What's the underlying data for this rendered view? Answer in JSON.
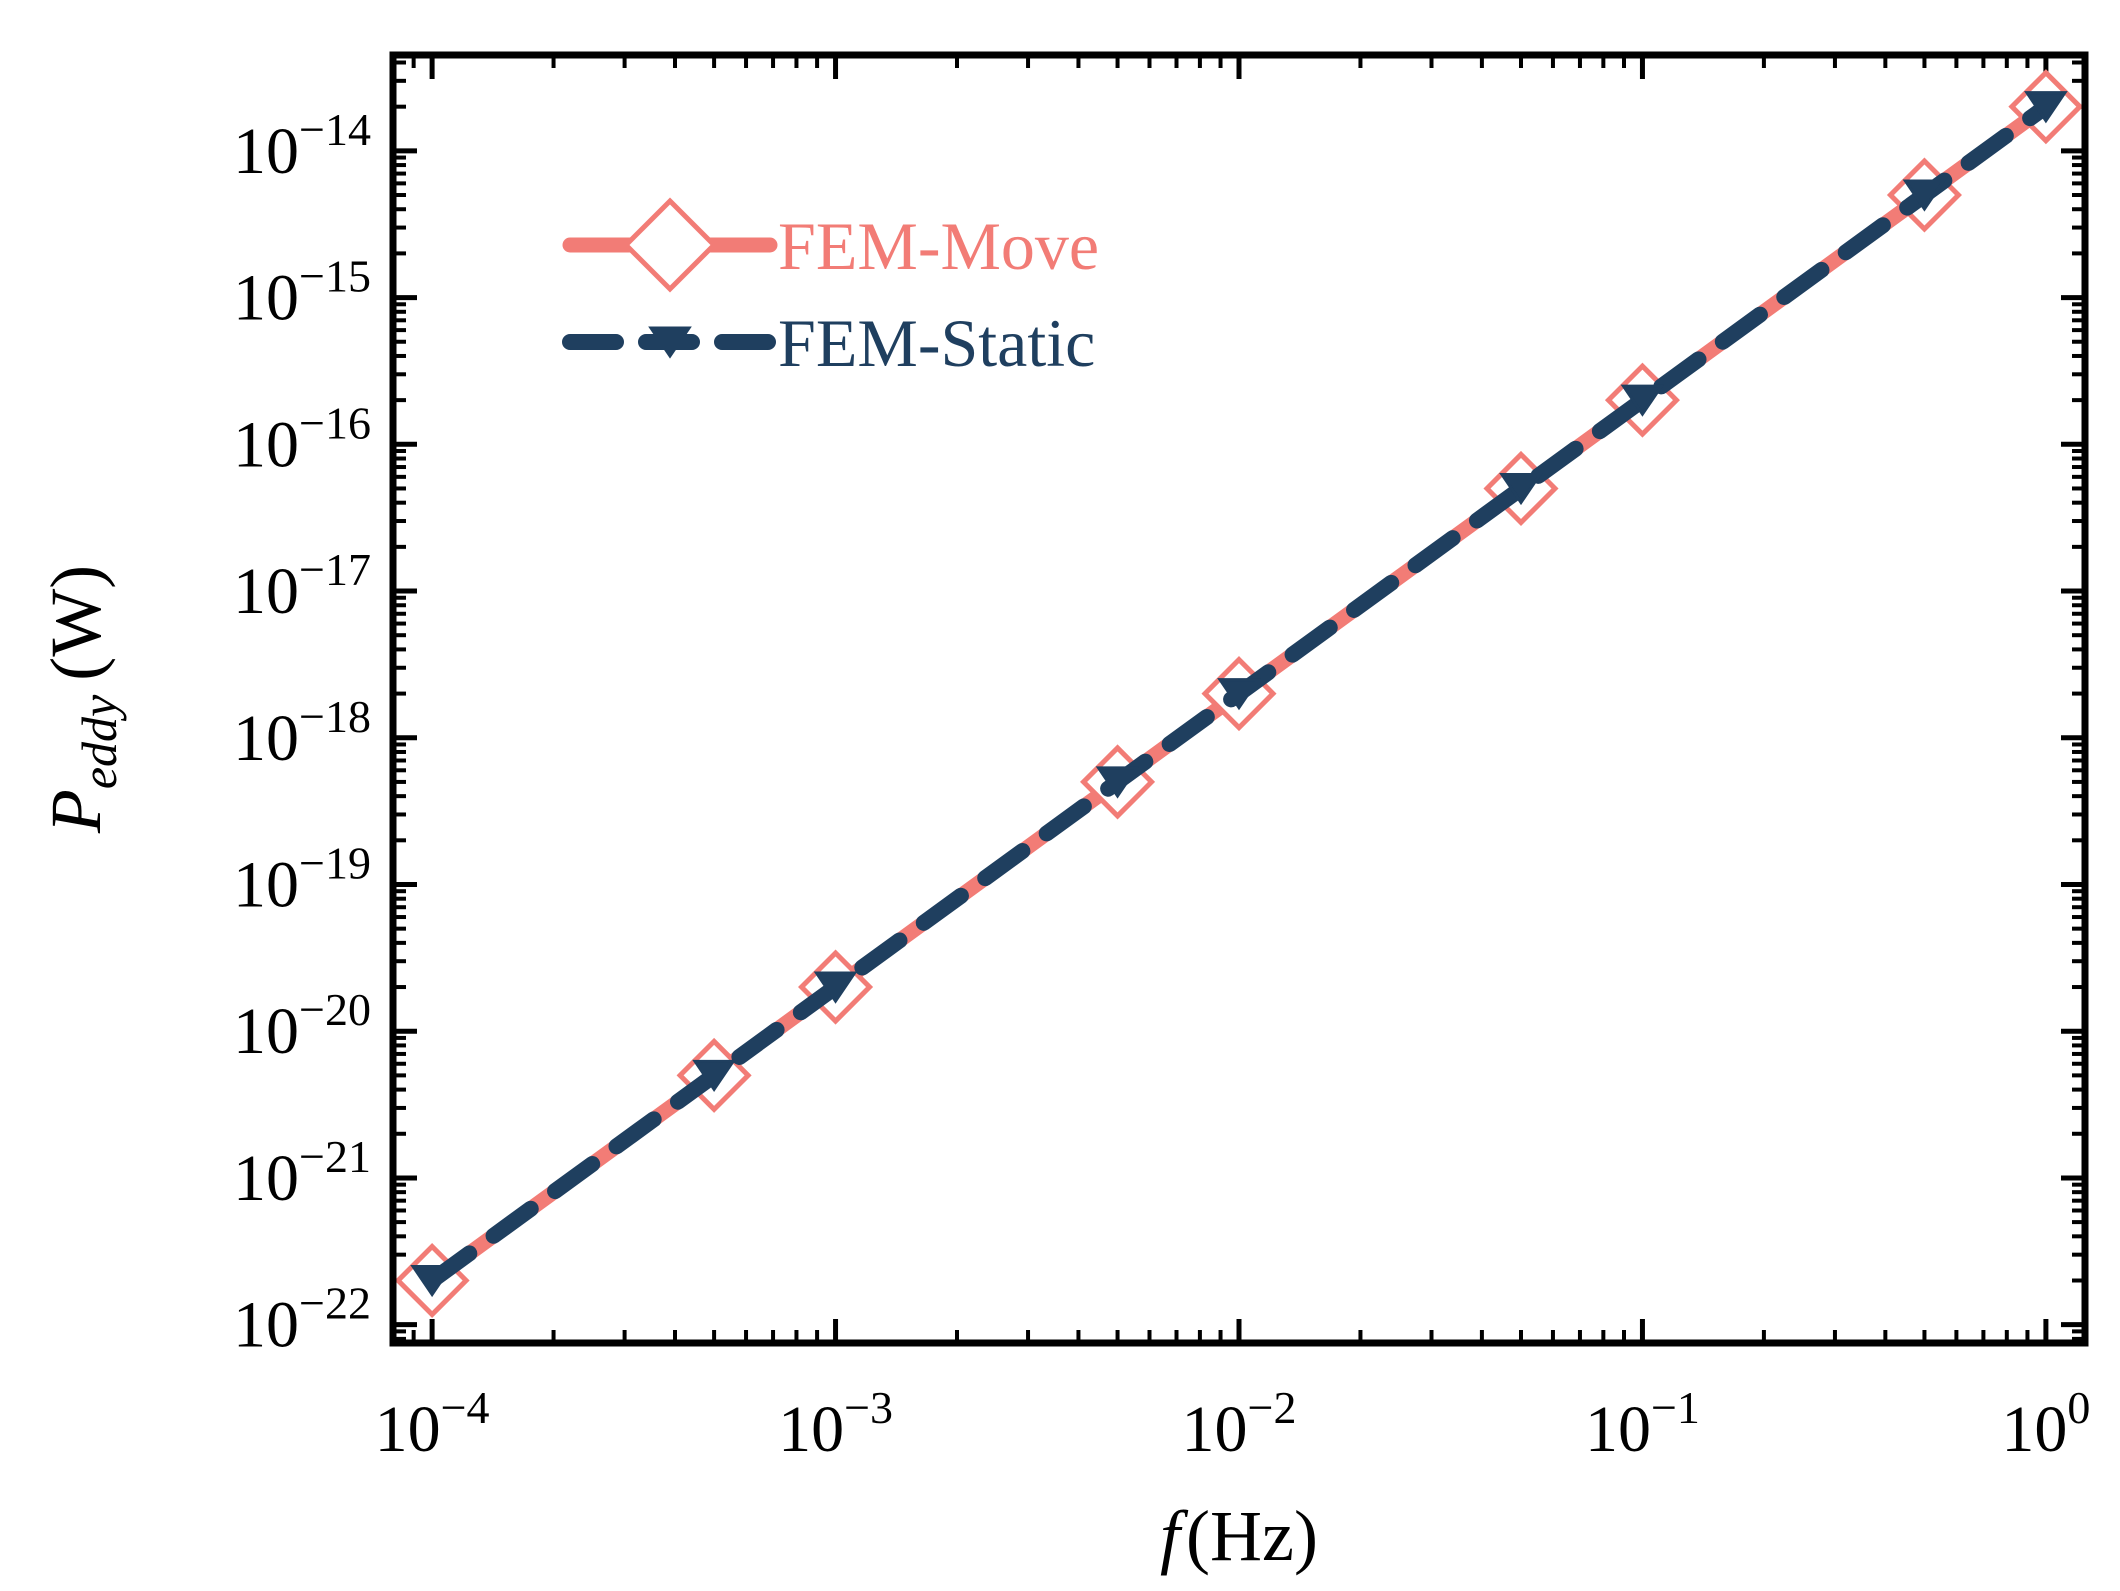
{
  "chart_data": {
    "type": "line",
    "title": "",
    "xlabel": {
      "italic": "f",
      "unit": "(Hz)"
    },
    "ylabel": {
      "base": "P",
      "sub": "eddy",
      "unit": "(W)"
    },
    "x_scale": "log",
    "y_scale": "log",
    "xlim": [
      8e-05,
      1.25
    ],
    "ylim": [
      7.5e-23,
      4.5e-14
    ],
    "x_ticks": [
      {
        "value": 0.0001,
        "base": "10",
        "exp": "−4"
      },
      {
        "value": 0.001,
        "base": "10",
        "exp": "−3"
      },
      {
        "value": 0.01,
        "base": "10",
        "exp": "−2"
      },
      {
        "value": 0.1,
        "base": "10",
        "exp": "−1"
      },
      {
        "value": 1,
        "base": "10",
        "exp": "0"
      }
    ],
    "y_ticks": [
      {
        "value": 1e-22,
        "base": "10",
        "exp": "−22"
      },
      {
        "value": 1e-21,
        "base": "10",
        "exp": "−21"
      },
      {
        "value": 1e-20,
        "base": "10",
        "exp": "−20"
      },
      {
        "value": 1e-19,
        "base": "10",
        "exp": "−19"
      },
      {
        "value": 1e-18,
        "base": "10",
        "exp": "−18"
      },
      {
        "value": 1e-17,
        "base": "10",
        "exp": "−17"
      },
      {
        "value": 1e-16,
        "base": "10",
        "exp": "−16"
      },
      {
        "value": 1e-15,
        "base": "10",
        "exp": "−15"
      },
      {
        "value": 1e-14,
        "base": "10",
        "exp": "−14"
      }
    ],
    "legend_position": "top-left",
    "series": [
      {
        "name": "FEM-Move",
        "color": "#f27c76",
        "line_style": "solid",
        "marker": "open-diamond",
        "x": [
          0.0001,
          0.0005,
          0.001,
          0.005,
          0.01,
          0.05,
          0.1,
          0.5,
          1
        ],
        "y": [
          2e-22,
          5e-21,
          2e-20,
          5e-19,
          2e-18,
          5e-17,
          2e-16,
          5e-15,
          2e-14
        ]
      },
      {
        "name": "FEM-Static",
        "color": "#1f3f5f",
        "line_style": "dashed",
        "marker": "filled-down-triangle",
        "x": [
          0.0001,
          0.0005,
          0.001,
          0.005,
          0.01,
          0.05,
          0.1,
          0.5,
          1
        ],
        "y": [
          2e-22,
          5e-21,
          2e-20,
          5e-19,
          2e-18,
          5e-17,
          2e-16,
          5e-15,
          2e-14
        ]
      }
    ]
  }
}
